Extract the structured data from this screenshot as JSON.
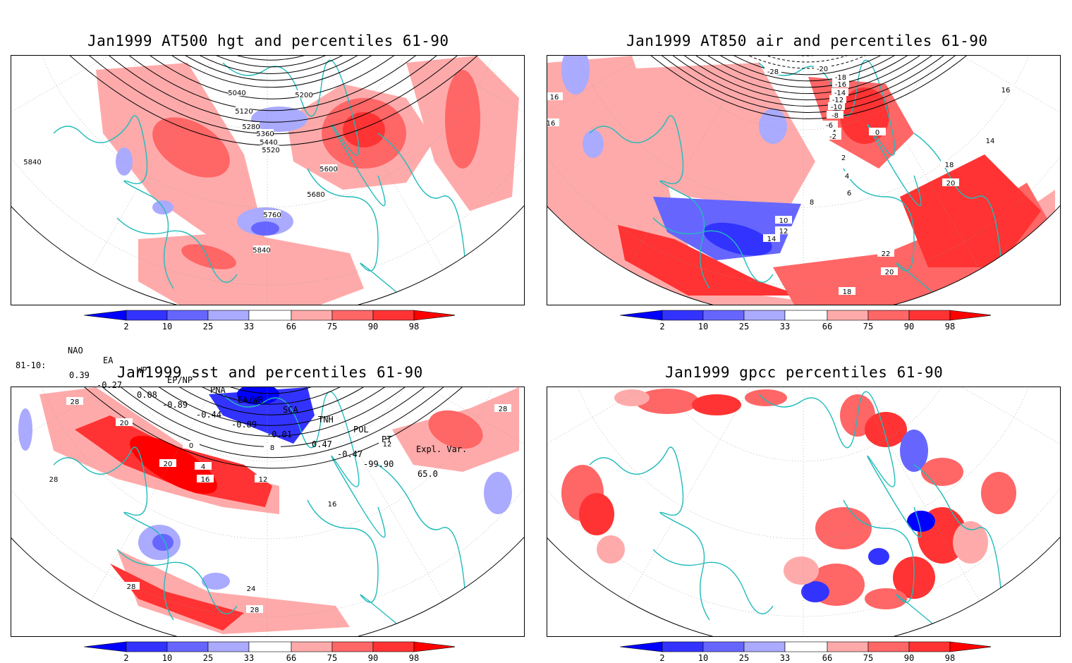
{
  "panels": [
    {
      "id": "hgt500",
      "title": "Jan1999 AT500 hgt and percentiles 61-90",
      "contour_labels": [
        "5040",
        "5120",
        "5200",
        "5280",
        "5360",
        "5440",
        "5520",
        "5600",
        "5680",
        "5760",
        "5840",
        "5840"
      ]
    },
    {
      "id": "air850",
      "title": "Jan1999 AT850 air and percentiles 61-90",
      "contour_labels": [
        "-28",
        "-20",
        "-18",
        "-16",
        "-14",
        "-12",
        "-10",
        "-8",
        "-6",
        "-4",
        "-2",
        "0",
        "2",
        "4",
        "6",
        "8",
        "10",
        "12",
        "14",
        "16",
        "16",
        "16",
        "14",
        "18",
        "20",
        "22",
        "20",
        "18"
      ]
    },
    {
      "id": "sst",
      "title": "Jan1999 sst and percentiles 61-90",
      "contour_labels": [
        "28",
        "20",
        "0",
        "4",
        "8",
        "12",
        "16",
        "20",
        "24",
        "28",
        "28",
        "28",
        "16",
        "12",
        "28"
      ]
    },
    {
      "id": "gpcc",
      "title": "Jan1999 gpcc percentiles 61-90",
      "contour_labels": []
    }
  ],
  "colorbar": {
    "ticks": [
      "2",
      "10",
      "25",
      "33",
      "66",
      "75",
      "90",
      "98"
    ],
    "colors": [
      "#0000ff",
      "#3333ff",
      "#6666ff",
      "#aaaaff",
      "#ffffff",
      "#ffaaaa",
      "#ff6666",
      "#ff3333",
      "#ff0000"
    ]
  },
  "indices": {
    "header": [
      "NAO",
      "EA",
      "WP",
      "EP/NP",
      "PNA",
      "EA/WR",
      "SCA",
      "TNH",
      "POL",
      "PT",
      "Expl. Var."
    ],
    "row_label": "81-10:",
    "values": [
      "0.39",
      "-0.27",
      "0.08",
      "-0.89",
      "-0.44",
      "-0.89",
      "-0.01",
      "0.47",
      "-0.47",
      "-99.90",
      "65.0"
    ]
  }
}
